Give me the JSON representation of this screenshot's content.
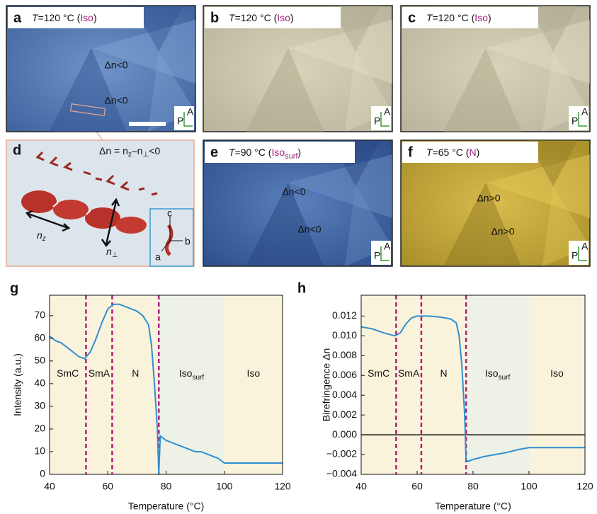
{
  "panels": [
    {
      "letter": "a",
      "label": [
        "T",
        "=120 °C (",
        "Iso",
        ")"
      ],
      "annotations": [
        "Δn<0",
        "Δn<0"
      ]
    },
    {
      "letter": "b",
      "label": [
        "T",
        "=120 °C (",
        "Iso",
        ")"
      ],
      "annotations": []
    },
    {
      "letter": "c",
      "label": [
        "T",
        "=120 °C (",
        "Iso",
        ")"
      ],
      "annotations": []
    },
    {
      "letter": "e",
      "label": [
        "T",
        "=90 °C (",
        "Iso",
        "surf",
        ")"
      ],
      "annotations": [
        "Δn<0",
        "Δn<0"
      ]
    },
    {
      "letter": "f",
      "label": [
        "T",
        "=65 °C (",
        "N",
        ")"
      ],
      "annotations": [
        "Δn>0",
        "Δn>0"
      ]
    }
  ],
  "polarizer": {
    "A": "A",
    "P": "P"
  },
  "panel_d": {
    "letter": "d",
    "equation": [
      "Δn = n",
      "z",
      "–n",
      "⊥",
      "<0"
    ],
    "n_z": [
      "n",
      "z"
    ],
    "n_perp": [
      "n",
      "⊥"
    ],
    "inset_axes": [
      "c",
      "b",
      "a"
    ]
  },
  "chart_data": [
    {
      "type": "line",
      "letter": "g",
      "ylabel": "Intensity (a.u.)",
      "xlabel": "Temperature (°C)",
      "color": "#2f8fd0",
      "x": [
        40,
        42,
        44,
        46,
        48,
        50,
        52,
        54,
        56,
        58,
        60,
        62,
        64,
        66,
        68,
        70,
        72,
        74,
        75,
        76,
        77,
        77.5,
        78,
        80,
        82,
        84,
        86,
        88,
        90,
        92,
        94,
        96,
        98,
        100,
        104,
        108,
        112,
        116,
        120
      ],
      "values": [
        61,
        59,
        58,
        56,
        54,
        52,
        51,
        54,
        60,
        67,
        73,
        75,
        75,
        74,
        73,
        72,
        70,
        66,
        57,
        40,
        20,
        0,
        17,
        15,
        14,
        13,
        12,
        11,
        10,
        10,
        9,
        8,
        7,
        5,
        5,
        5,
        5,
        5,
        5
      ],
      "xlim": [
        40,
        120
      ],
      "xticks": [
        40,
        60,
        80,
        100,
        120
      ],
      "ylim": [
        0,
        79
      ],
      "yticks": [
        0,
        10,
        20,
        30,
        40,
        50,
        60,
        70
      ],
      "phases": [
        {
          "name": "SmC",
          "start": 40,
          "end": 52.5,
          "color": "#faf3dc"
        },
        {
          "name": "SmA",
          "start": 52.5,
          "end": 61.5,
          "color": "#faf3dc"
        },
        {
          "name": "N",
          "start": 61.5,
          "end": 77.5,
          "color": "#faf3dc"
        },
        {
          "name": "Iso",
          "subscript": "surf",
          "start": 77.5,
          "end": 100,
          "color": "#edf1e6"
        },
        {
          "name": "Iso",
          "start": 100,
          "end": 120,
          "color": "#faf3dc"
        }
      ],
      "dividers": [
        52.5,
        61.5,
        77.5
      ],
      "phase_label_color": "#a0207a"
    },
    {
      "type": "line",
      "letter": "h",
      "ylabel": "Birefringence Δn",
      "xlabel": "Temperature (°C)",
      "color": "#2f8fd0",
      "x": [
        40,
        44,
        48,
        52,
        54,
        56,
        58,
        60,
        64,
        68,
        72,
        74,
        75,
        76,
        77,
        77.5,
        78,
        80,
        84,
        88,
        92,
        96,
        100,
        104,
        110,
        116,
        120
      ],
      "values": [
        0.0109,
        0.0107,
        0.0103,
        0.01,
        0.0103,
        0.0112,
        0.0118,
        0.012,
        0.012,
        0.0119,
        0.0117,
        0.0113,
        0.01,
        0.007,
        0.002,
        -0.0025,
        -0.0027,
        -0.0025,
        -0.0022,
        -0.002,
        -0.0018,
        -0.0015,
        -0.0013,
        -0.0013,
        -0.0013,
        -0.0013,
        -0.0013
      ],
      "xlim": [
        40,
        120
      ],
      "xticks": [
        40,
        60,
        80,
        100,
        120
      ],
      "ylim": [
        -0.004,
        0.0141
      ],
      "yticks": [
        {
          "value": -0.004,
          "label": "−0.004"
        },
        {
          "value": -0.002,
          "label": "−0.002"
        },
        {
          "value": 0,
          "label": "0.000"
        },
        0.002,
        0.004,
        0.006,
        0.008,
        {
          "value": 0.01,
          "label": "0.010"
        },
        0.012
      ],
      "hline": 0,
      "phases": [
        {
          "name": "SmC",
          "start": 40,
          "end": 52.5,
          "color": "#faf3dc"
        },
        {
          "name": "SmA",
          "start": 52.5,
          "end": 61.5,
          "color": "#faf3dc"
        },
        {
          "name": "N",
          "start": 61.5,
          "end": 77.5,
          "color": "#faf3dc"
        },
        {
          "name": "Iso",
          "subscript": "surf",
          "start": 77.5,
          "end": 100,
          "color": "#edf1e6"
        },
        {
          "name": "Iso",
          "start": 100,
          "end": 120,
          "color": "#faf3dc"
        }
      ],
      "dividers": [
        52.5,
        61.5,
        77.5
      ],
      "phase_label_color": "#a0207a"
    }
  ]
}
